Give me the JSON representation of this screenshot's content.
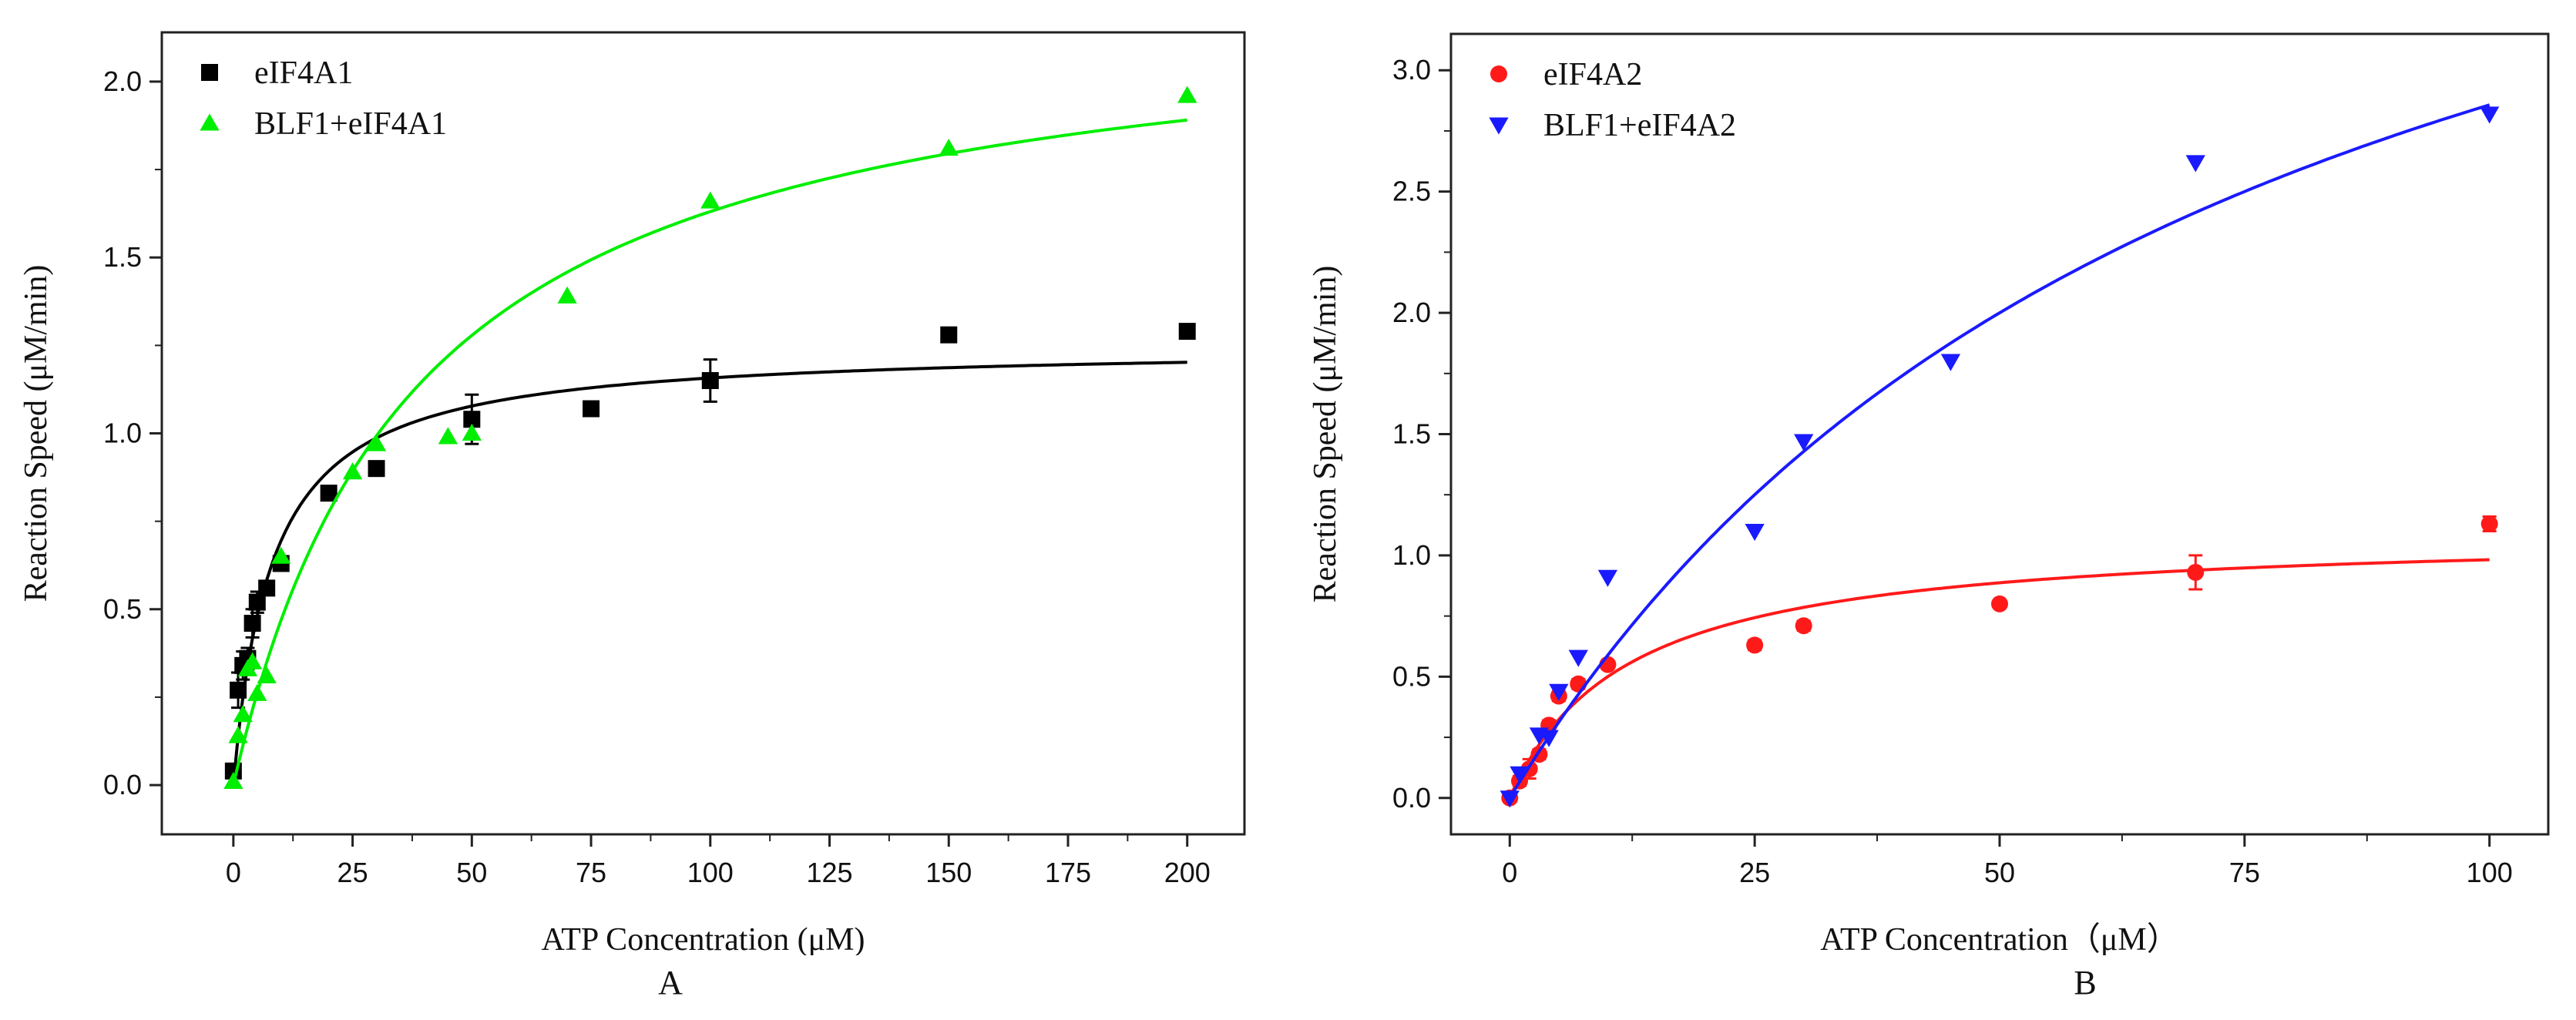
{
  "chart_data": [
    {
      "type": "scatter",
      "panel_label": "A",
      "xlabel": "ATP Concentration (μM)",
      "ylabel": "Reaction Speed (μM/min)",
      "xlim": [
        -15,
        212
      ],
      "ylim": [
        -0.14,
        2.14
      ],
      "xticks": [
        0,
        25,
        50,
        75,
        100,
        125,
        150,
        175,
        200
      ],
      "yticks": [
        0.0,
        0.5,
        1.0,
        1.5,
        2.0
      ],
      "xtick_labels": [
        "0",
        "25",
        "50",
        "75",
        "100",
        "125",
        "150",
        "175",
        "200"
      ],
      "ytick_labels": [
        "0.0",
        "0.5",
        "1.0",
        "1.5",
        "2.0"
      ],
      "legend_position": "top-left",
      "series": [
        {
          "name": "eIF4A1",
          "marker": "square",
          "color": "#000000",
          "x": [
            0,
            1,
            2,
            3,
            4,
            5,
            7,
            10,
            20,
            30,
            50,
            75,
            100,
            150,
            200
          ],
          "y": [
            0.04,
            0.27,
            0.34,
            0.36,
            0.46,
            0.52,
            0.56,
            0.63,
            0.83,
            0.9,
            1.04,
            1.07,
            1.15,
            1.28,
            1.29
          ],
          "err": [
            0.02,
            0.05,
            0.04,
            0.03,
            0.04,
            0.03,
            0.02,
            0.02,
            0.01,
            0.02,
            0.07,
            0.01,
            0.06,
            0.01,
            0.01
          ],
          "fit": {
            "model": "michaelis-menten",
            "vmax": 1.25,
            "km": 8.0
          }
        },
        {
          "name": "BLF1+eIF4A1",
          "marker": "triangle-up",
          "color": "#00ee00",
          "x": [
            0,
            1,
            2,
            3,
            4,
            5,
            7,
            10,
            25,
            30,
            45,
            50,
            70,
            100,
            150,
            200
          ],
          "y": [
            0.01,
            0.14,
            0.2,
            0.33,
            0.35,
            0.26,
            0.31,
            0.65,
            0.89,
            0.97,
            0.99,
            1.0,
            1.39,
            1.66,
            1.81,
            1.96
          ],
          "err": [
            0.01,
            0.01,
            0.01,
            0.01,
            0.01,
            0.01,
            0.01,
            0.01,
            0.01,
            0.01,
            0.01,
            0.01,
            0.01,
            0.01,
            0.01,
            0.01
          ],
          "fit": {
            "model": "michaelis-menten",
            "vmax": 2.25,
            "km": 38.0
          }
        }
      ],
      "x_axis_label_char_hint": ""
    },
    {
      "type": "scatter",
      "panel_label": "B",
      "xlabel": "ATP Concentration（μM）",
      "ylabel": "Reaction Speed (μM/min)",
      "xlim": [
        -6,
        106
      ],
      "ylim": [
        -0.15,
        3.15
      ],
      "xticks": [
        0,
        25,
        50,
        75,
        100
      ],
      "yticks": [
        0.0,
        0.5,
        1.0,
        1.5,
        2.0,
        2.5,
        3.0
      ],
      "xtick_labels": [
        "0",
        "25",
        "50",
        "75",
        "100"
      ],
      "ytick_labels": [
        "0.0",
        "0.5",
        "1.0",
        "1.5",
        "2.0",
        "2.5",
        "3.0"
      ],
      "legend_position": "top-left",
      "series": [
        {
          "name": "eIF4A2",
          "marker": "circle",
          "color": "#ff1a1a",
          "x": [
            0,
            1,
            2,
            3,
            4,
            5,
            7,
            10,
            25,
            30,
            50,
            70,
            100
          ],
          "y": [
            0.0,
            0.07,
            0.12,
            0.18,
            0.3,
            0.42,
            0.47,
            0.55,
            0.63,
            0.71,
            0.8,
            0.93,
            1.13
          ],
          "err": [
            0.01,
            0.02,
            0.04,
            0.02,
            0.02,
            0.02,
            0.02,
            0.01,
            0.02,
            0.02,
            0.01,
            0.07,
            0.03
          ],
          "fit": {
            "model": "michaelis-menten",
            "vmax": 1.1,
            "km": 12.0
          }
        },
        {
          "name": "BLF1+eIF4A2",
          "marker": "triangle-down",
          "color": "#1a1aff",
          "x": [
            0,
            1,
            3,
            4,
            5,
            7,
            10,
            25,
            30,
            45,
            70,
            100
          ],
          "y": [
            0.0,
            0.1,
            0.26,
            0.25,
            0.44,
            0.58,
            0.91,
            1.1,
            1.47,
            1.8,
            2.62,
            2.82
          ],
          "err": [
            0.01,
            0.01,
            0.01,
            0.01,
            0.01,
            0.01,
            0.01,
            0.01,
            0.01,
            0.01,
            0.01,
            0.01
          ],
          "fit": {
            "model": "michaelis-menten",
            "vmax": 5.0,
            "km": 75.0
          }
        }
      ]
    }
  ]
}
